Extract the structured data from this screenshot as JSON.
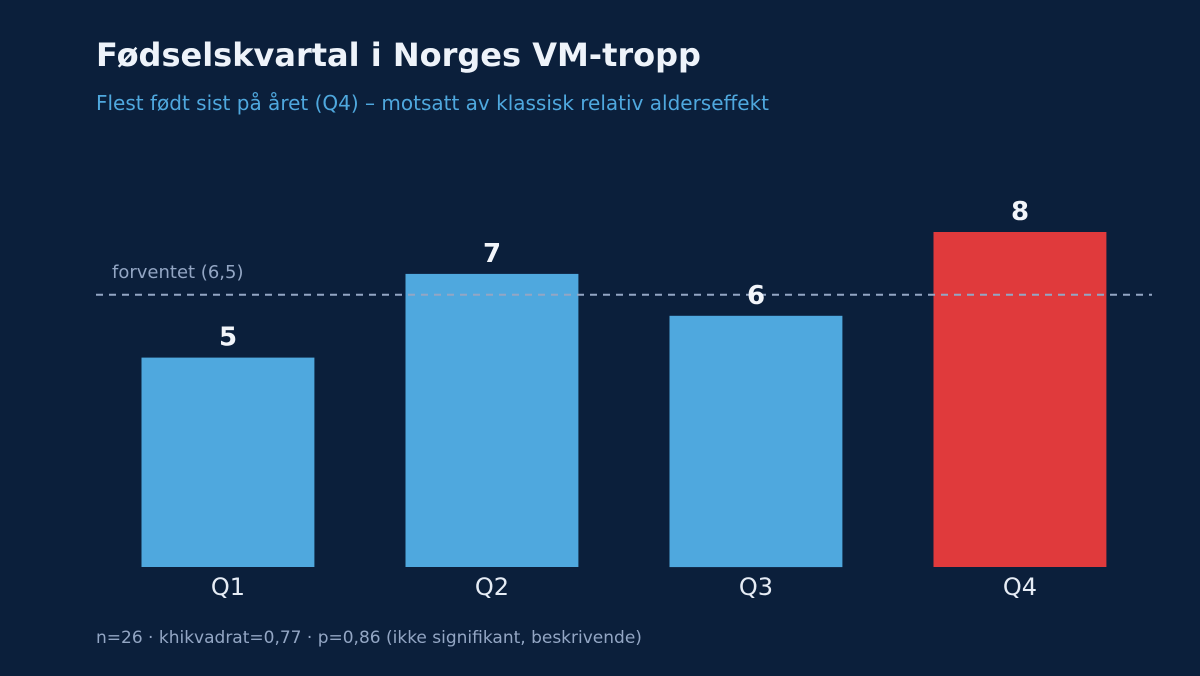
{
  "chart_data": {
    "type": "bar",
    "title": "Fødselskvartal i Norges VM-tropp",
    "subtitle": "Flest født sist på året (Q4) – motsatt av klassisk relativ alderseffekt",
    "categories": [
      "Q1",
      "Q2",
      "Q3",
      "Q4"
    ],
    "values": [
      5,
      7,
      6,
      8
    ],
    "data_labels": [
      "5",
      "7",
      "6",
      "8"
    ],
    "bar_colors": [
      "#4fa8de",
      "#4fa8de",
      "#4fa8de",
      "#e03a3c"
    ],
    "reference_line": {
      "value": 6.5,
      "label": "forventet (6,5)",
      "style": "dashed",
      "color": "#93a6c4"
    },
    "xlabel": "",
    "ylabel": "",
    "ylim": [
      0,
      8
    ],
    "grid": false,
    "y_axis_visible": false,
    "footnote": "n=26 · khikvadrat=0,77 · p=0,86 (ikke signifikant, beskrivende)"
  },
  "colors": {
    "background": "#0b1f3b",
    "title": "#eef3fa",
    "subtitle": "#4fa8de",
    "footnote": "#93a6c4",
    "bar_default": "#4fa8de",
    "bar_highlight": "#e03a3c"
  }
}
